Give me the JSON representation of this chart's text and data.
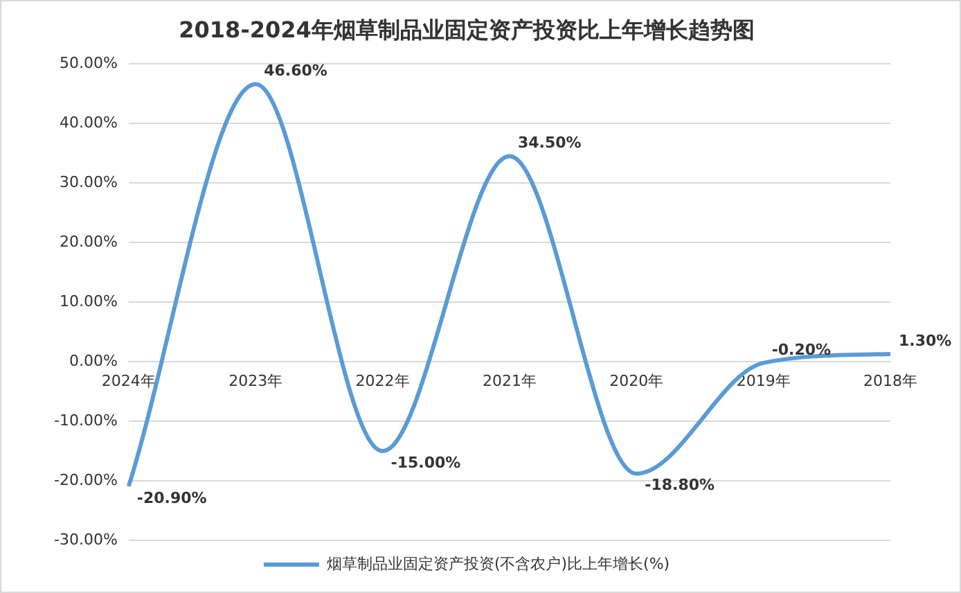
{
  "chart_data": {
    "type": "line",
    "title": "2018-2024年烟草制品业固定资产投资比上年增长趋势图",
    "categories": [
      "2024年",
      "2023年",
      "2022年",
      "2021年",
      "2020年",
      "2019年",
      "2018年"
    ],
    "series": [
      {
        "name": "烟草制品业固定资产投资(不含农户)比上年增长(%)",
        "color": "#5b9bd5",
        "values": [
          -20.9,
          46.6,
          -15,
          34.5,
          -18.8,
          -0.2,
          1.3
        ],
        "value_labels": [
          "-20.90%",
          "46.60%",
          "-15.00%",
          "34.50%",
          "-18.80%",
          "-0.20%",
          "1.30%"
        ]
      }
    ],
    "ylim": [
      -30,
      50
    ],
    "yticks": [
      {
        "value": -30,
        "label": "-30.00%"
      },
      {
        "value": -20,
        "label": "-20.00%"
      },
      {
        "value": -10,
        "label": "-10.00%"
      },
      {
        "value": 0,
        "label": "0.00%"
      },
      {
        "value": 10,
        "label": "10.00%"
      },
      {
        "value": 20,
        "label": "20.00%"
      },
      {
        "value": 30,
        "label": "30.00%"
      },
      {
        "value": 40,
        "label": "40.00%"
      },
      {
        "value": 50,
        "label": "50.00%"
      }
    ],
    "grid": "y",
    "legend": "bottom",
    "marker": "none",
    "line_style": "solid"
  }
}
